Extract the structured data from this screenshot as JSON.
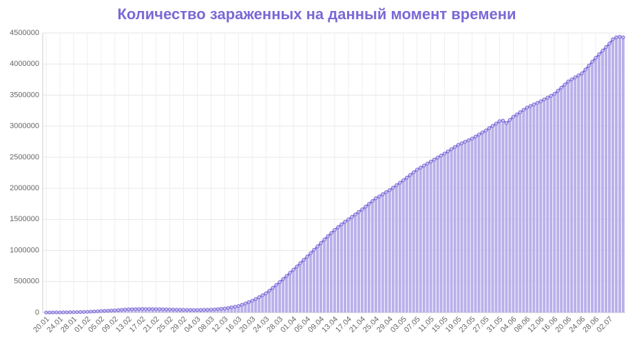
{
  "chart_data": {
    "type": "bar-line",
    "title": "Количество зараженных на данный момент времени",
    "categories": [
      "20.01",
      null,
      null,
      null,
      "24.01",
      null,
      null,
      null,
      "28.01",
      null,
      null,
      null,
      "01.02",
      null,
      null,
      null,
      "05.02",
      null,
      null,
      null,
      "09.02",
      null,
      null,
      null,
      "13.02",
      null,
      null,
      null,
      "17.02",
      null,
      null,
      null,
      "21.02",
      null,
      null,
      null,
      "25.02",
      null,
      null,
      null,
      "29.02",
      null,
      null,
      null,
      "04.03",
      null,
      null,
      null,
      "08.03",
      null,
      null,
      null,
      "12.03",
      null,
      null,
      null,
      "16.03",
      null,
      null,
      null,
      "20.03",
      null,
      null,
      null,
      "24.03",
      null,
      null,
      null,
      "28.03",
      null,
      null,
      null,
      "01.04",
      null,
      null,
      null,
      "05.04",
      null,
      null,
      null,
      "09.04",
      null,
      null,
      null,
      "13.04",
      null,
      null,
      null,
      "17.04",
      null,
      null,
      null,
      "21.04",
      null,
      null,
      null,
      "25.04",
      null,
      null,
      null,
      "29.04",
      null,
      null,
      null,
      "03.05",
      null,
      null,
      null,
      "07.05",
      null,
      null,
      null,
      "11.05",
      null,
      null,
      null,
      "15.05",
      null,
      null,
      null,
      "19.05",
      null,
      null,
      null,
      "23.05",
      null,
      null,
      null,
      "27.05",
      null,
      null,
      null,
      "31.05",
      null,
      null,
      null,
      "04.06",
      null,
      null,
      null,
      "08.06",
      null,
      null,
      null,
      "12.06",
      null,
      null,
      null,
      "16.06",
      null,
      null,
      null,
      "20.06",
      null,
      null,
      null,
      "24.06",
      null,
      null,
      null,
      "28.06",
      null,
      null,
      null,
      "02.07",
      null,
      null,
      null,
      null
    ],
    "values": [
      300,
      700,
      1100,
      1600,
      2000,
      2900,
      3800,
      4600,
      5500,
      6900,
      8200,
      9600,
      11000,
      14000,
      17500,
      20500,
      24000,
      27000,
      30000,
      32500,
      35000,
      39000,
      44000,
      48000,
      52000,
      53500,
      55000,
      56000,
      57000,
      56500,
      56000,
      55500,
      55000,
      54000,
      52500,
      51000,
      50000,
      48000,
      46000,
      44500,
      43000,
      42500,
      42000,
      41500,
      41000,
      42000,
      43500,
      45000,
      46000,
      50000,
      55000,
      60000,
      65000,
      74000,
      84000,
      94000,
      105000,
      125000,
      145000,
      168000,
      190000,
      218000,
      248000,
      278000,
      310000,
      352000,
      398000,
      444000,
      490000,
      540000,
      590000,
      640000,
      690000,
      742000,
      795000,
      848000,
      900000,
      955000,
      1010000,
      1065000,
      1120000,
      1175000,
      1228000,
      1280000,
      1330000,
      1375000,
      1420000,
      1460000,
      1500000,
      1540000,
      1580000,
      1620000,
      1660000,
      1705000,
      1750000,
      1795000,
      1840000,
      1870000,
      1905000,
      1938000,
      1970000,
      2010000,
      2050000,
      2090000,
      2130000,
      2172000,
      2215000,
      2258000,
      2300000,
      2332000,
      2365000,
      2398000,
      2430000,
      2462000,
      2495000,
      2528000,
      2560000,
      2595000,
      2630000,
      2665000,
      2700000,
      2725000,
      2750000,
      2775000,
      2800000,
      2832000,
      2865000,
      2898000,
      2930000,
      2968000,
      3005000,
      3042000,
      3080000,
      3090000,
      3050000,
      3100000,
      3150000,
      3188000,
      3225000,
      3262000,
      3300000,
      3325000,
      3350000,
      3375000,
      3400000,
      3430000,
      3460000,
      3490000,
      3520000,
      3570000,
      3620000,
      3670000,
      3720000,
      3752000,
      3785000,
      3818000,
      3850000,
      3912000,
      3975000,
      4038000,
      4100000,
      4158000,
      4215000,
      4272000,
      4330000,
      4400000,
      4430000,
      4440000,
      4430000
    ],
    "color": "#7b6bd6",
    "bar_color": "#b9b0ea",
    "ylim": [
      0,
      4500000
    ],
    "yticks": [
      0,
      500000,
      1000000,
      1500000,
      2000000,
      2500000,
      3000000,
      3500000,
      4000000,
      4500000
    ],
    "grid": true
  }
}
